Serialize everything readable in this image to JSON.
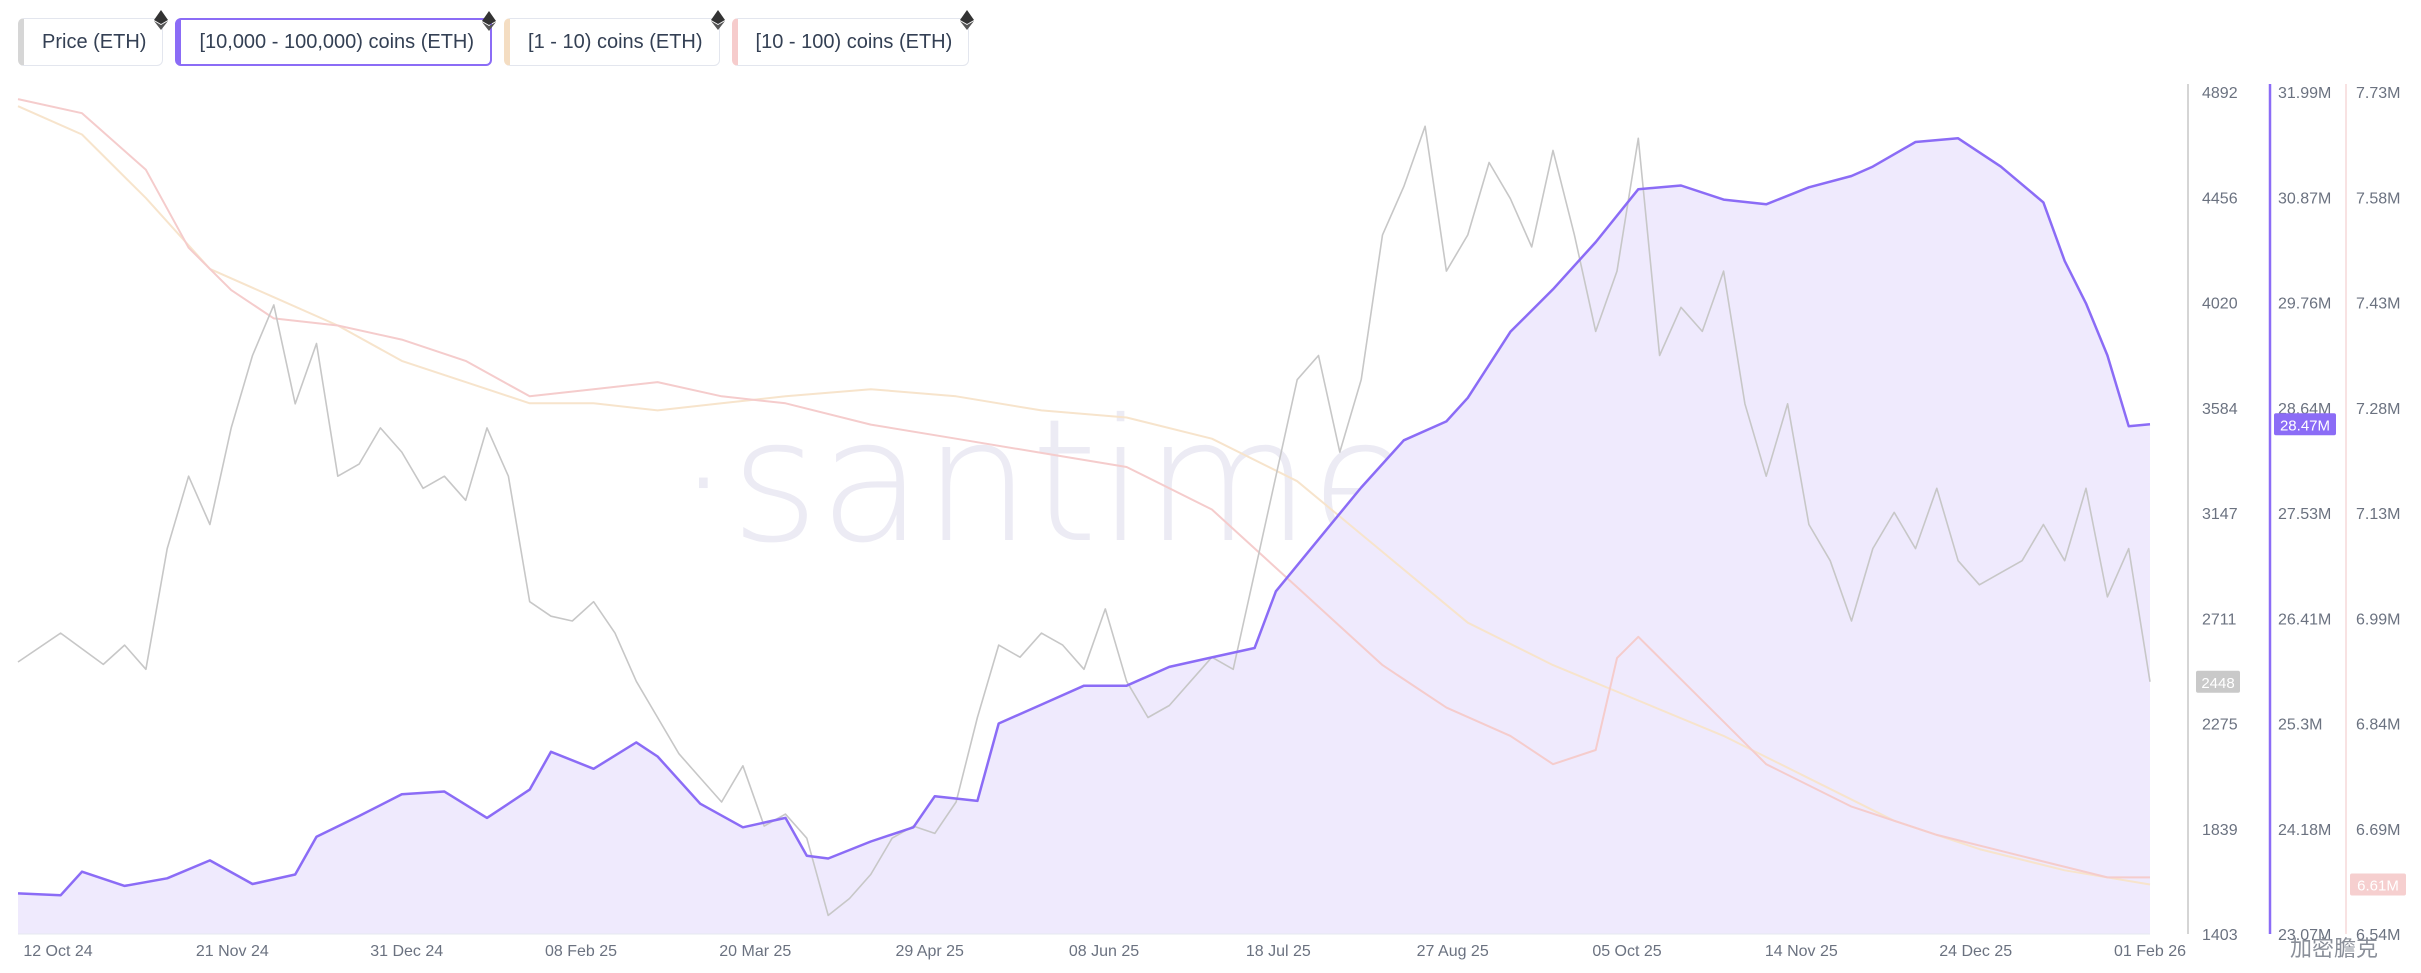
{
  "legend": [
    {
      "label": "Price (ETH)",
      "color": "#cfcfcf",
      "active": false
    },
    {
      "label": "[10,000 - 100,000) coins (ETH)",
      "color": "#8b6cf6",
      "active": true
    },
    {
      "label": "[1 - 10) coins (ETH)",
      "color": "#f4ddc2",
      "active": false
    },
    {
      "label": "[10 - 100) coins (ETH)",
      "color": "#f6cccc",
      "active": false
    }
  ],
  "watermark": "·santiment·",
  "footer_text": "加密膽克",
  "chart_data": {
    "type": "line",
    "x_ticks": [
      "12 Oct 24",
      "21 Nov 24",
      "31 Dec 24",
      "08 Feb 25",
      "20 Mar 25",
      "29 Apr 25",
      "08 Jun 25",
      "18 Jul 25",
      "27 Aug 25",
      "05 Oct 25",
      "14 Nov 25",
      "24 Dec 25",
      "01 Feb 26"
    ],
    "price_axis": {
      "ticks": [
        "4892",
        "4456",
        "4020",
        "3584",
        "3147",
        "2711",
        "2275",
        "1839",
        "1403"
      ],
      "range": [
        1403,
        4892
      ],
      "current_label": "2448"
    },
    "whale_axis": {
      "ticks": [
        "31.99M",
        "30.87M",
        "29.76M",
        "28.64M",
        "27.53M",
        "26.41M",
        "25.3M",
        "24.18M",
        "23.07M"
      ],
      "range": [
        23.07,
        31.99
      ],
      "current_label": "28.47M"
    },
    "small_axis": {
      "ticks": [
        "7.73M",
        "7.58M",
        "7.43M",
        "7.28M",
        "7.13M",
        "6.99M",
        "6.84M",
        "6.69M",
        "6.54M"
      ],
      "range": [
        6.54,
        7.73
      ],
      "current_label": "6.61M"
    },
    "series": [
      {
        "name": "[10,000 - 100,000) coins (ETH)",
        "axis": "whale",
        "color": "#8b6cf6",
        "points": [
          [
            0,
            23.5
          ],
          [
            0.02,
            23.48
          ],
          [
            0.03,
            23.73
          ],
          [
            0.05,
            23.58
          ],
          [
            0.07,
            23.66
          ],
          [
            0.09,
            23.85
          ],
          [
            0.11,
            23.6
          ],
          [
            0.13,
            23.7
          ],
          [
            0.14,
            24.1
          ],
          [
            0.16,
            24.32
          ],
          [
            0.18,
            24.55
          ],
          [
            0.2,
            24.58
          ],
          [
            0.22,
            24.3
          ],
          [
            0.24,
            24.6
          ],
          [
            0.25,
            25.0
          ],
          [
            0.27,
            24.82
          ],
          [
            0.29,
            25.1
          ],
          [
            0.3,
            24.95
          ],
          [
            0.32,
            24.45
          ],
          [
            0.34,
            24.2
          ],
          [
            0.36,
            24.3
          ],
          [
            0.37,
            23.9
          ],
          [
            0.38,
            23.87
          ],
          [
            0.4,
            24.05
          ],
          [
            0.42,
            24.2
          ],
          [
            0.43,
            24.53
          ],
          [
            0.45,
            24.48
          ],
          [
            0.46,
            25.3
          ],
          [
            0.48,
            25.5
          ],
          [
            0.5,
            25.7
          ],
          [
            0.52,
            25.7
          ],
          [
            0.54,
            25.9
          ],
          [
            0.56,
            26.0
          ],
          [
            0.58,
            26.1
          ],
          [
            0.59,
            26.7
          ],
          [
            0.61,
            27.25
          ],
          [
            0.63,
            27.8
          ],
          [
            0.65,
            28.3
          ],
          [
            0.67,
            28.5
          ],
          [
            0.68,
            28.75
          ],
          [
            0.7,
            29.45
          ],
          [
            0.72,
            29.9
          ],
          [
            0.74,
            30.4
          ],
          [
            0.76,
            30.96
          ],
          [
            0.78,
            31.0
          ],
          [
            0.8,
            30.85
          ],
          [
            0.82,
            30.8
          ],
          [
            0.84,
            30.98
          ],
          [
            0.86,
            31.1
          ],
          [
            0.87,
            31.2
          ],
          [
            0.89,
            31.46
          ],
          [
            0.91,
            31.5
          ],
          [
            0.93,
            31.2
          ],
          [
            0.95,
            30.82
          ],
          [
            0.96,
            30.2
          ],
          [
            0.97,
            29.75
          ],
          [
            0.98,
            29.2
          ],
          [
            0.99,
            28.45
          ],
          [
            1.0,
            28.47
          ]
        ]
      },
      {
        "name": "[1 - 10) coins (ETH)",
        "axis": "small",
        "color": "#f7e4cc",
        "points": [
          [
            0,
            7.71
          ],
          [
            0.03,
            7.67
          ],
          [
            0.06,
            7.58
          ],
          [
            0.09,
            7.48
          ],
          [
            0.12,
            7.44
          ],
          [
            0.15,
            7.4
          ],
          [
            0.18,
            7.35
          ],
          [
            0.21,
            7.32
          ],
          [
            0.24,
            7.29
          ],
          [
            0.27,
            7.29
          ],
          [
            0.3,
            7.28
          ],
          [
            0.33,
            7.29
          ],
          [
            0.36,
            7.3
          ],
          [
            0.4,
            7.31
          ],
          [
            0.44,
            7.3
          ],
          [
            0.48,
            7.28
          ],
          [
            0.52,
            7.27
          ],
          [
            0.56,
            7.24
          ],
          [
            0.6,
            7.18
          ],
          [
            0.64,
            7.08
          ],
          [
            0.68,
            6.98
          ],
          [
            0.72,
            6.92
          ],
          [
            0.76,
            6.87
          ],
          [
            0.8,
            6.82
          ],
          [
            0.84,
            6.76
          ],
          [
            0.88,
            6.7
          ],
          [
            0.92,
            6.66
          ],
          [
            0.96,
            6.63
          ],
          [
            1.0,
            6.61
          ]
        ]
      },
      {
        "name": "[10 - 100) coins (ETH)",
        "axis": "small",
        "color": "#f5cccc",
        "points": [
          [
            0,
            7.72
          ],
          [
            0.03,
            7.7
          ],
          [
            0.06,
            7.62
          ],
          [
            0.08,
            7.51
          ],
          [
            0.1,
            7.45
          ],
          [
            0.12,
            7.41
          ],
          [
            0.15,
            7.4
          ],
          [
            0.18,
            7.38
          ],
          [
            0.21,
            7.35
          ],
          [
            0.24,
            7.3
          ],
          [
            0.27,
            7.31
          ],
          [
            0.3,
            7.32
          ],
          [
            0.33,
            7.3
          ],
          [
            0.36,
            7.29
          ],
          [
            0.4,
            7.26
          ],
          [
            0.44,
            7.24
          ],
          [
            0.48,
            7.22
          ],
          [
            0.52,
            7.2
          ],
          [
            0.56,
            7.14
          ],
          [
            0.6,
            7.03
          ],
          [
            0.64,
            6.92
          ],
          [
            0.67,
            6.86
          ],
          [
            0.7,
            6.82
          ],
          [
            0.72,
            6.78
          ],
          [
            0.74,
            6.8
          ],
          [
            0.75,
            6.93
          ],
          [
            0.76,
            6.96
          ],
          [
            0.78,
            6.9
          ],
          [
            0.8,
            6.84
          ],
          [
            0.82,
            6.78
          ],
          [
            0.86,
            6.72
          ],
          [
            0.9,
            6.68
          ],
          [
            0.94,
            6.65
          ],
          [
            0.98,
            6.62
          ],
          [
            1.0,
            6.62
          ]
        ]
      },
      {
        "name": "Price (ETH)",
        "axis": "price",
        "color": "#c7c7c7",
        "points": [
          [
            0,
            2530
          ],
          [
            0.02,
            2650
          ],
          [
            0.04,
            2520
          ],
          [
            0.05,
            2600
          ],
          [
            0.06,
            2500
          ],
          [
            0.07,
            3000
          ],
          [
            0.08,
            3300
          ],
          [
            0.09,
            3100
          ],
          [
            0.1,
            3500
          ],
          [
            0.11,
            3800
          ],
          [
            0.12,
            4010
          ],
          [
            0.13,
            3600
          ],
          [
            0.14,
            3850
          ],
          [
            0.15,
            3300
          ],
          [
            0.16,
            3350
          ],
          [
            0.17,
            3500
          ],
          [
            0.18,
            3400
          ],
          [
            0.19,
            3250
          ],
          [
            0.2,
            3300
          ],
          [
            0.21,
            3200
          ],
          [
            0.22,
            3500
          ],
          [
            0.23,
            3300
          ],
          [
            0.24,
            2780
          ],
          [
            0.25,
            2720
          ],
          [
            0.26,
            2700
          ],
          [
            0.27,
            2780
          ],
          [
            0.28,
            2650
          ],
          [
            0.29,
            2450
          ],
          [
            0.3,
            2300
          ],
          [
            0.31,
            2150
          ],
          [
            0.32,
            2050
          ],
          [
            0.33,
            1950
          ],
          [
            0.34,
            2100
          ],
          [
            0.35,
            1850
          ],
          [
            0.36,
            1900
          ],
          [
            0.37,
            1800
          ],
          [
            0.38,
            1480
          ],
          [
            0.39,
            1550
          ],
          [
            0.4,
            1650
          ],
          [
            0.41,
            1800
          ],
          [
            0.42,
            1850
          ],
          [
            0.43,
            1820
          ],
          [
            0.44,
            1950
          ],
          [
            0.45,
            2300
          ],
          [
            0.46,
            2600
          ],
          [
            0.47,
            2550
          ],
          [
            0.48,
            2650
          ],
          [
            0.49,
            2600
          ],
          [
            0.5,
            2500
          ],
          [
            0.51,
            2750
          ],
          [
            0.52,
            2450
          ],
          [
            0.53,
            2300
          ],
          [
            0.54,
            2350
          ],
          [
            0.55,
            2450
          ],
          [
            0.56,
            2550
          ],
          [
            0.57,
            2500
          ],
          [
            0.58,
            2900
          ],
          [
            0.59,
            3300
          ],
          [
            0.6,
            3700
          ],
          [
            0.61,
            3800
          ],
          [
            0.62,
            3400
          ],
          [
            0.63,
            3700
          ],
          [
            0.64,
            4300
          ],
          [
            0.65,
            4500
          ],
          [
            0.66,
            4750
          ],
          [
            0.67,
            4150
          ],
          [
            0.68,
            4300
          ],
          [
            0.69,
            4600
          ],
          [
            0.7,
            4450
          ],
          [
            0.71,
            4250
          ],
          [
            0.72,
            4650
          ],
          [
            0.73,
            4300
          ],
          [
            0.74,
            3900
          ],
          [
            0.75,
            4150
          ],
          [
            0.76,
            4700
          ],
          [
            0.77,
            3800
          ],
          [
            0.78,
            4000
          ],
          [
            0.79,
            3900
          ],
          [
            0.8,
            4150
          ],
          [
            0.81,
            3600
          ],
          [
            0.82,
            3300
          ],
          [
            0.83,
            3600
          ],
          [
            0.84,
            3100
          ],
          [
            0.85,
            2950
          ],
          [
            0.86,
            2700
          ],
          [
            0.87,
            3000
          ],
          [
            0.88,
            3150
          ],
          [
            0.89,
            3000
          ],
          [
            0.9,
            3250
          ],
          [
            0.91,
            2950
          ],
          [
            0.92,
            2850
          ],
          [
            0.93,
            2900
          ],
          [
            0.94,
            2950
          ],
          [
            0.95,
            3100
          ],
          [
            0.96,
            2950
          ],
          [
            0.97,
            3250
          ],
          [
            0.98,
            2800
          ],
          [
            0.99,
            3000
          ],
          [
            1.0,
            2448
          ]
        ]
      }
    ]
  },
  "colors": {
    "price": "#c7c7c7",
    "whale": "#8b6cf6",
    "whale_fill": "#efeafd",
    "small1": "#f7e4cc",
    "small2": "#f5cccc"
  }
}
